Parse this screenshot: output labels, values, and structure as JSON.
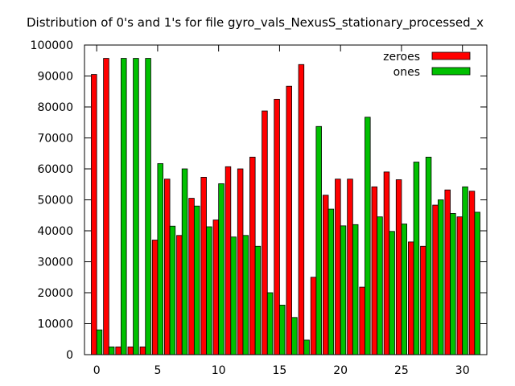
{
  "chart_data": {
    "type": "bar",
    "title": "Distribution of 0's and 1's for file gyro_vals_NexusS_stationary_processed_x",
    "xlabel": "",
    "ylabel": "",
    "x": [
      0,
      1,
      2,
      3,
      4,
      5,
      6,
      7,
      8,
      9,
      10,
      11,
      12,
      13,
      14,
      15,
      16,
      17,
      18,
      19,
      20,
      21,
      22,
      23,
      24,
      25,
      26,
      27,
      28,
      29,
      30,
      31
    ],
    "xlim": [
      -1,
      32
    ],
    "ylim": [
      0,
      100000
    ],
    "x_ticks": [
      0,
      5,
      10,
      15,
      20,
      25,
      30
    ],
    "y_ticks": [
      0,
      10000,
      20000,
      30000,
      40000,
      50000,
      60000,
      70000,
      80000,
      90000,
      100000
    ],
    "legend_position": "top-right",
    "series": [
      {
        "name": "zeroes",
        "color": "#ff0000",
        "values": [
          90500,
          95700,
          2500,
          2500,
          2500,
          37000,
          56700,
          38500,
          50500,
          57300,
          43500,
          60700,
          60000,
          63800,
          78700,
          82500,
          86700,
          93700,
          25000,
          51500,
          56700,
          56700,
          21800,
          54200,
          59000,
          56500,
          36400,
          35000,
          48300,
          53200,
          44500,
          52800
        ]
      },
      {
        "name": "ones",
        "color": "#00c000",
        "values": [
          8000,
          2500,
          95700,
          95700,
          95700,
          61700,
          41500,
          60000,
          48000,
          41300,
          55200,
          38000,
          38500,
          35000,
          20000,
          16000,
          12000,
          4700,
          73700,
          47000,
          41600,
          42000,
          76700,
          44500,
          39800,
          42200,
          62200,
          63800,
          50000,
          45600,
          54200,
          46000
        ]
      }
    ]
  }
}
